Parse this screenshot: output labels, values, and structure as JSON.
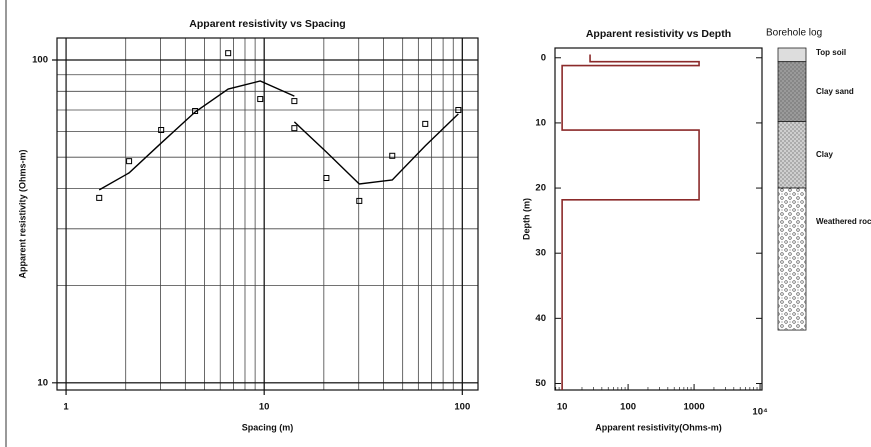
{
  "chart_data": [
    {
      "type": "scatter",
      "title": "Apparent resistivity vs Spacing",
      "x_label": "Spacing (m)",
      "y_label": "Apparent resistivity (Ohms-m)",
      "xlog": true,
      "ylog": true,
      "xlim": [
        0.9,
        120
      ],
      "ylim": [
        9.5,
        117
      ],
      "xticks": [
        1,
        10,
        100
      ],
      "yticks": [
        10,
        100
      ],
      "grid": true,
      "series": [
        {
          "type": "scatter",
          "marker": "square",
          "color": "#000000",
          "x": [
            1.47,
            2.08,
            3.02,
            4.48,
            6.58,
            9.55,
            14.2,
            14.2,
            20.6,
            30.2,
            44.3,
            65,
            95.5
          ],
          "values": [
            37.4,
            48.6,
            60.7,
            69.5,
            105,
            75.7,
            74.6,
            61.5,
            43.1,
            36.6,
            50.5,
            63.4,
            70
          ]
        },
        {
          "type": "line",
          "color": "#000000",
          "x": [
            1.47,
            2.08,
            3.02,
            4.48,
            6.58,
            9.55,
            14.2,
            null,
            14.2,
            20.6,
            30.2,
            44.3,
            65,
            95.5
          ],
          "values": [
            39.6,
            44.7,
            55.3,
            69.0,
            81.3,
            86.1,
            77.3,
            null,
            64.3,
            51.9,
            41.3,
            42.5,
            54.2,
            68.1
          ]
        }
      ]
    },
    {
      "type": "line",
      "title": "Apparent resistivity vs Depth",
      "x_label": "Apparent resistivity(Ohms-m)",
      "y_label": "Depth (m)",
      "xlog": true,
      "y_inverted": true,
      "xlim": [
        7.8,
        10700
      ],
      "ylim": [
        -1.5,
        51
      ],
      "xticks": [
        10,
        100,
        1000,
        {
          "value": 10000,
          "label": "10⁴"
        }
      ],
      "yticks": [
        0,
        10,
        20,
        30,
        40,
        50
      ],
      "grid": false,
      "series": [
        {
          "type": "line",
          "color": "#8b2a2a",
          "x": [
            26.5,
            26.5,
            1190,
            1190,
            10,
            10,
            1190,
            1190,
            10,
            10
          ],
          "values": [
            -0.5,
            0.6,
            0.6,
            1.2,
            1.2,
            11.1,
            11.1,
            21.8,
            21.8,
            51
          ]
        }
      ]
    }
  ],
  "borehole_log": {
    "title": "Borehole log",
    "layers": [
      {
        "name": "Top soil",
        "top": -1.5,
        "bottom": 0.6,
        "fill": "#dddddd",
        "pattern": "none"
      },
      {
        "name": "Clay sand",
        "top": 0.6,
        "bottom": 9.8,
        "fill": "#9a9a9a",
        "pattern": "dots"
      },
      {
        "name": "Clay",
        "top": 9.8,
        "bottom": 20,
        "fill": "#cfcfcf",
        "pattern": "dots"
      },
      {
        "name": "Weathered roc",
        "top": 20,
        "bottom": 41.8,
        "fill": "#ffffff",
        "pattern": "circles"
      }
    ]
  }
}
